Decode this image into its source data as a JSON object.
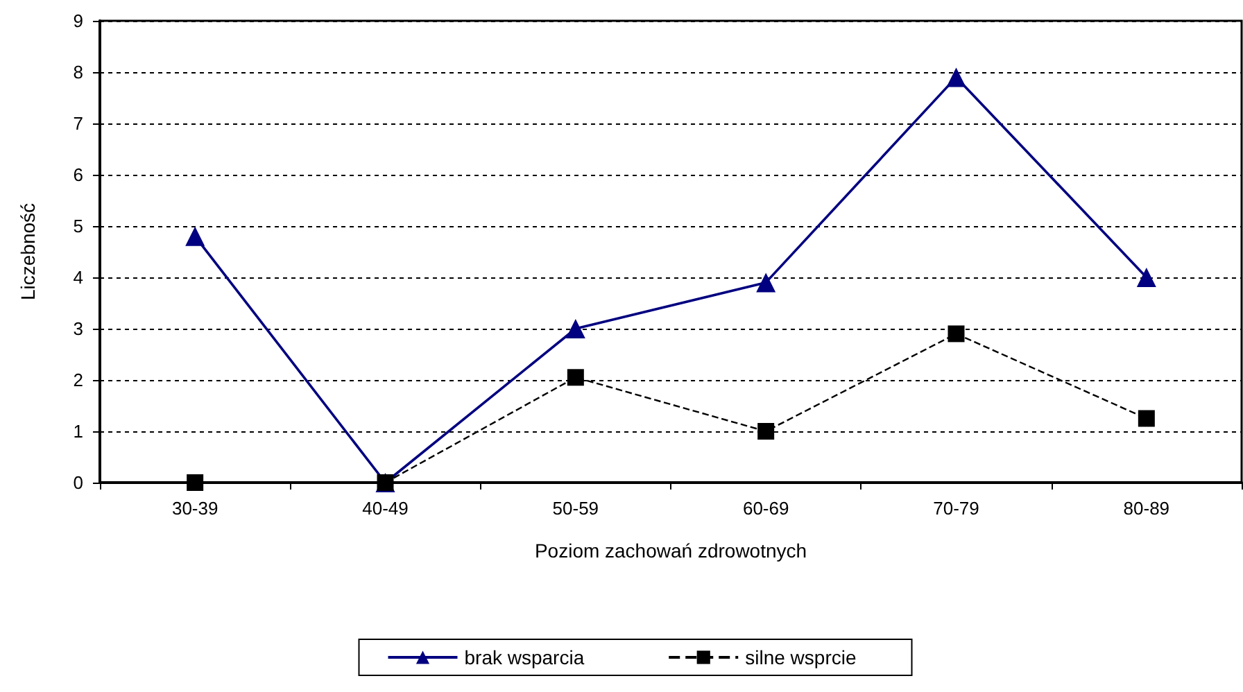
{
  "chart_data": {
    "type": "line",
    "xlabel": "Poziom zachowań zdrowotnych",
    "ylabel": "Liczebność",
    "categories": [
      "30-39",
      "40-49",
      "50-59",
      "60-69",
      "70-79",
      "80-89"
    ],
    "series": [
      {
        "name": "brak wsparcia",
        "color": "#000080",
        "marker": "triangle",
        "line_style": "solid",
        "values": [
          4.8,
          0,
          3,
          3.9,
          7.9,
          4
        ]
      },
      {
        "name": "silne wsprcie",
        "color": "#000000",
        "marker": "square",
        "line_style": "dashed",
        "values": [
          0,
          0,
          2.05,
          1,
          2.9,
          1.25
        ]
      }
    ],
    "ylim": [
      0,
      9
    ],
    "yticks": [
      0,
      1,
      2,
      3,
      4,
      5,
      6,
      7,
      8,
      9
    ],
    "grid": "y",
    "legend": "bottom"
  }
}
